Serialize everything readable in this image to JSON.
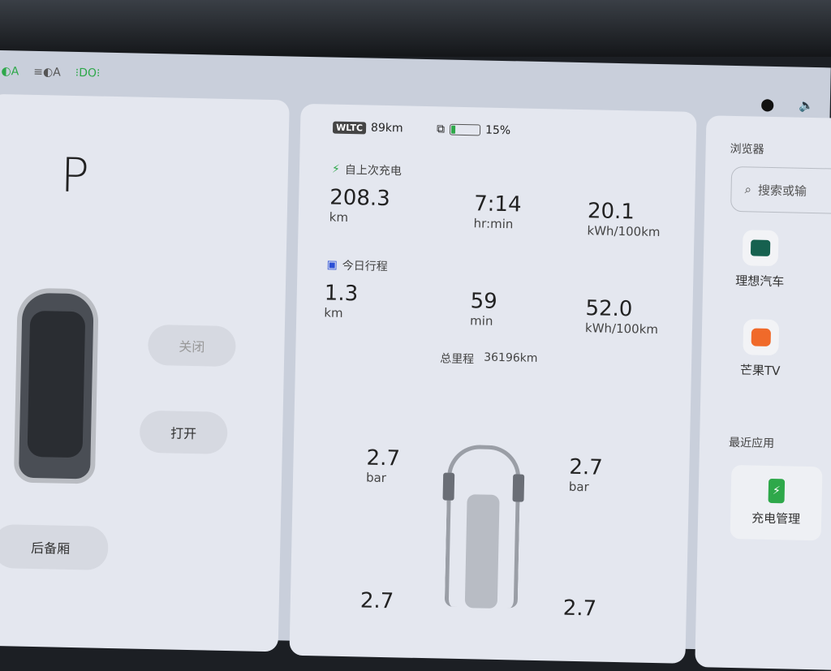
{
  "status_bar": {
    "icons": [
      "auto-headlight-icon",
      "auto-highbeam-icon",
      "parking-light-icon"
    ],
    "right_icons": [
      "location-icon",
      "volume-icon"
    ]
  },
  "left_panel": {
    "gear": "P",
    "close_button": "关闭",
    "open_button": "打开",
    "trunk_button": "后备厢"
  },
  "center_panel": {
    "wltc_badge": "WLTC",
    "wltc_range": "89km",
    "battery_percent": "15%",
    "battery_level": 0.15,
    "since_charge": {
      "title": "自上次充电",
      "distance": "208.3",
      "distance_unit": "km",
      "time": "7:14",
      "time_unit": "hr:min",
      "consumption": "20.1",
      "consumption_unit": "kWh/100km"
    },
    "today_trip": {
      "title": "今日行程",
      "distance": "1.3",
      "distance_unit": "km",
      "time": "59",
      "time_unit": "min",
      "consumption": "52.0",
      "consumption_unit": "kWh/100km"
    },
    "odometer_label": "总里程",
    "odometer_value": "36196km",
    "tires": {
      "front_left": "2.7",
      "front_right": "2.7",
      "rear_left": "2.7",
      "rear_right": "2.7",
      "unit": "bar"
    }
  },
  "right_panel": {
    "browser_title": "浏览器",
    "search_placeholder": "搜索或输",
    "apps": [
      {
        "label": "理想汽车"
      },
      {
        "label": "芒果TV"
      }
    ],
    "recent_title": "最近应用",
    "recent_apps": [
      {
        "label": "充电管理"
      }
    ]
  },
  "colors": {
    "accent_green": "#2ea84a",
    "calendar_blue": "#2b4fd6",
    "mango_orange": "#f06a2a"
  }
}
